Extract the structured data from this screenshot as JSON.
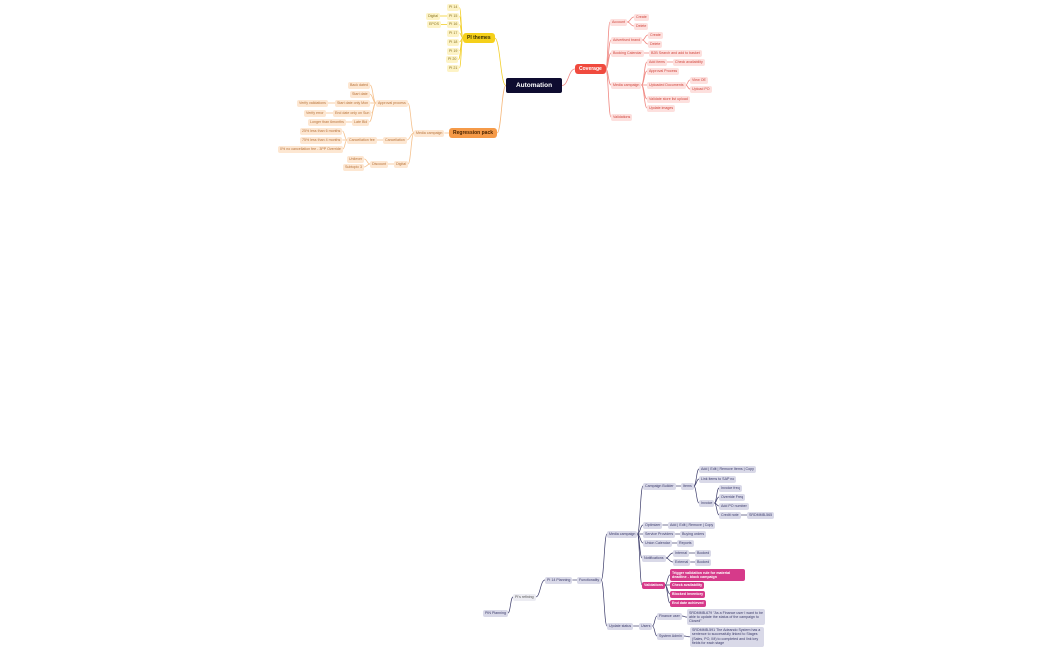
{
  "top": {
    "root": "Automation",
    "pi_themes": {
      "label": "PI themes",
      "items": [
        "PI 14",
        "PI 15",
        "PI 16",
        "PI 17",
        "PI 18",
        "PI 19",
        "PI 20",
        "PI 21"
      ],
      "pi15_child": "Digital",
      "pi16_child": "EPOS"
    },
    "coverage": {
      "label": "Coverage",
      "account": {
        "label": "Account",
        "create": "Create",
        "delete": "Delete"
      },
      "advertised_brand": {
        "label": "Advertised brand",
        "create": "Create",
        "delete": "Delete"
      },
      "booking_calendar": {
        "label": "Booking Calendar",
        "child": "B2B Search and add to basket"
      },
      "media_campaign": {
        "label": "Media campaign",
        "add_items": "Add items",
        "check_availability": "Check availability",
        "approval_process": "Approval Process",
        "uploaded_documents": "Uploaded Documents",
        "view_oe": "View OE",
        "upload_po": "Upload PO",
        "validate_store_list": "Validate store list upload",
        "update_images": "Update images"
      },
      "validations": "Validations"
    },
    "regression": {
      "label": "Regression pack",
      "media_campaign": "Media campaign",
      "approval_process": {
        "label": "Approval process",
        "back_dated": "Back dated",
        "start_date": "Start date",
        "start_date_mon": "Start date only Mon",
        "verify_validations": "Verify validations",
        "end_date_sun": "End date only on Sun",
        "verify_error": "Verify error",
        "late_bid": "Late Bid",
        "longer_6m": "Longer than 6months"
      },
      "cancellation": {
        "label": "Cancellation",
        "fee": "Cancellation fee",
        "f25": "25% less than 6 months",
        "f75": "75% less than 4 months",
        "f0": "0% no cancellation fee - 3PP Override"
      },
      "digital": {
        "label": "Digital",
        "discount": "Discount",
        "unilever": "Unilever",
        "subtopic": "Subtopic 3"
      }
    }
  },
  "bottom": {
    "pin_planning": "PIN Planning",
    "pis_refining": "PI's refining",
    "pi14_planning": "PI 14 Planning",
    "functionality": "Functionality",
    "media_campaign": {
      "label": "Media campaign",
      "campaign_builder": "Campaign Builder",
      "items": "Items",
      "items_edit": "Add | Edit | Remove Items | Copy",
      "link_items": "Link items to SAP no",
      "invoice": "Invoice",
      "invoice_freq": "Invoice freq",
      "override_freq": "Override Freq",
      "add_po": "Add PO number",
      "credit_note": "Credit note",
      "srdmmb_565": "SRDMMB-565",
      "optimizer": "Optimizer",
      "optimizer_edit": "Add | Edit | Remove | Copy",
      "service_providers": "Service Providers",
      "buying_orders": "Buying orders",
      "union_calendar": "Union Calendar",
      "reports": "Reports",
      "notifications": "Notifications",
      "internal": "Internal",
      "external": "External",
      "booked": "Booked",
      "validations": "Validations",
      "trigger_rule": "Trigger validation rule for material deadline - block campaign",
      "check_availability": "Check availability",
      "blocked_inventory": "Blocked inventory",
      "end_date_achieved": "End date achieved"
    },
    "update_status": {
      "label": "Update status",
      "users": "Users",
      "finance_user": "Finance user",
      "finance_story": "SRDMMB-679    \"As a Finance user I want to be able to update the status of the campaign to Closed\"",
      "system_admin": "System Admin",
      "admin_story": "SRDMMB-591 The Adeando System has a sentence to successfully linked to Stages (Sales, PO, IM) to completed and link key fields for each stage"
    }
  },
  "colors": {
    "root": "#0e0c30",
    "pi_themes": "#f5d01a",
    "coverage": "#f04a3e",
    "regression": "#f59a48",
    "bottom_lines": "#3d3d6b",
    "validations": "#d63a8a"
  }
}
